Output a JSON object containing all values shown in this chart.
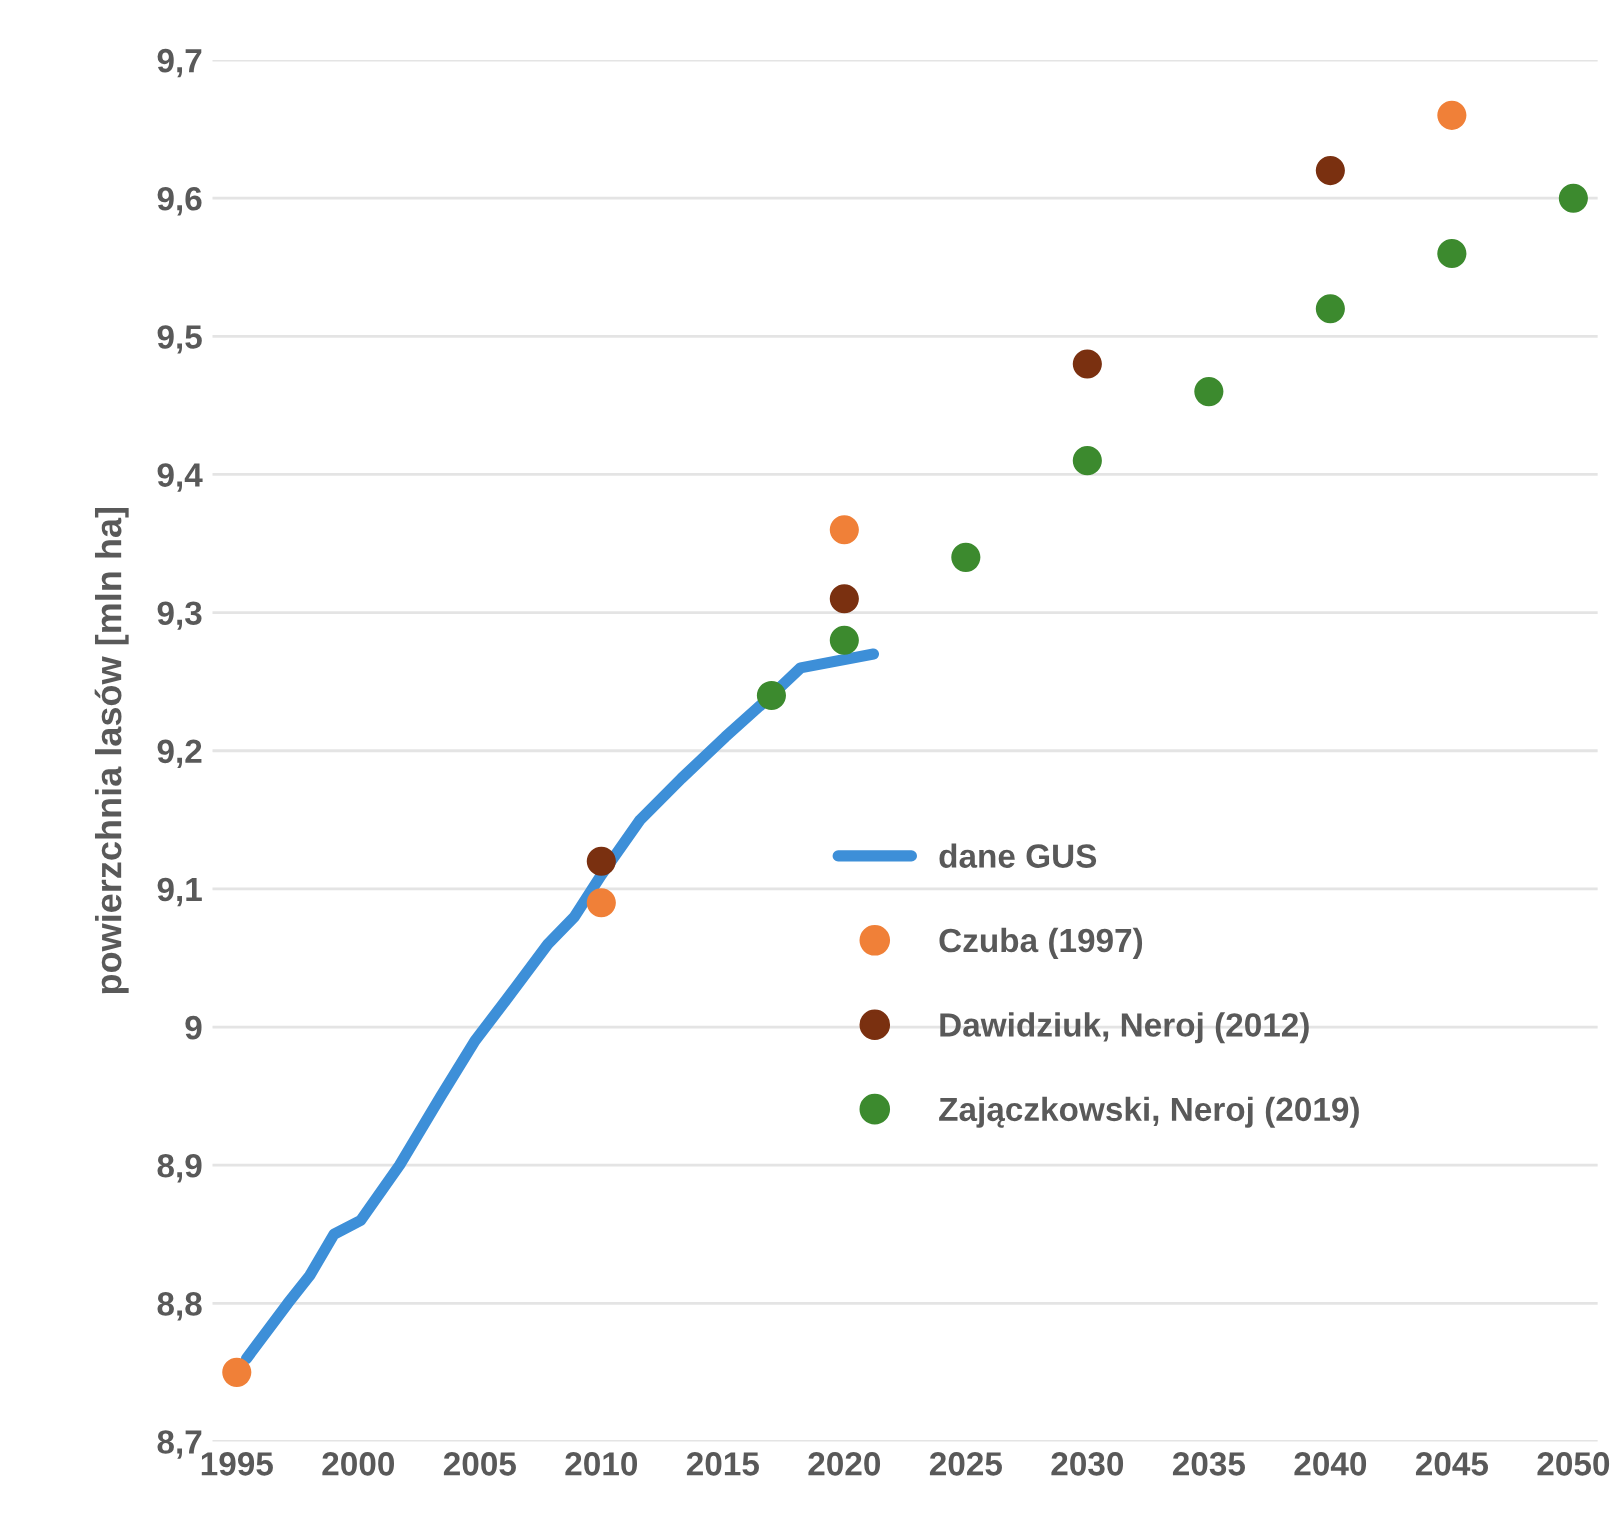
{
  "chart_data": {
    "type": "line",
    "ylabel": "powierzchnia lasów [mln ha]",
    "xlim": [
      1994,
      2051
    ],
    "xticks": [
      1995,
      2000,
      2005,
      2010,
      2015,
      2020,
      2025,
      2030,
      2035,
      2040,
      2045,
      2050
    ],
    "ylim": [
      8.7,
      9.7
    ],
    "yticks": [
      {
        "value": 8.7,
        "label": "8,7"
      },
      {
        "value": 8.8,
        "label": "8,8"
      },
      {
        "value": 8.9,
        "label": "8,9"
      },
      9,
      {
        "value": 9.1,
        "label": "9,1"
      },
      {
        "value": 9.2,
        "label": "9,2"
      },
      {
        "value": 9.3,
        "label": "9,3"
      },
      {
        "value": 9.4,
        "label": "9,4"
      },
      {
        "value": 9.5,
        "label": "9,5"
      },
      {
        "value": 9.6,
        "label": "9,6"
      },
      {
        "value": 9.7,
        "label": "9,7"
      }
    ],
    "grid": "y",
    "legend": "right",
    "series": [
      {
        "name": "dane GUS",
        "color": "#3d8fd8",
        "marker": "none",
        "line_style": "solid",
        "x": [
          1995.4,
          1997.1,
          1998.0,
          1999.0,
          2000.1,
          2001.7,
          2003.4,
          2004.8,
          2006.1,
          2007.8,
          2008.9,
          2010.0,
          2011.6,
          2013.3,
          2015.1,
          2017.0,
          2018.2,
          2021.2
        ],
        "values": [
          8.76,
          8.8,
          8.82,
          8.85,
          8.86,
          8.9,
          8.95,
          8.99,
          9.02,
          9.06,
          9.08,
          9.11,
          9.15,
          9.18,
          9.21,
          9.24,
          9.26,
          9.27
        ]
      },
      {
        "name": "Czuba (1997)",
        "type": "scatter",
        "color": "#f08038",
        "marker": "circle",
        "x": [
          1995,
          2010,
          2020,
          2045
        ],
        "values": [
          8.75,
          9.09,
          9.36,
          9.66
        ]
      },
      {
        "name": "Dawidziuk, Neroj (2012)",
        "type": "scatter",
        "color": "#7a3010",
        "marker": "circle",
        "x": [
          2010,
          2020,
          2030,
          2040
        ],
        "values": [
          9.12,
          9.31,
          9.48,
          9.62
        ]
      },
      {
        "name": "Zajączkowski, Neroj (2019)",
        "type": "scatter",
        "color": "#3c8a2e",
        "marker": "circle",
        "x": [
          2017,
          2020,
          2025,
          2030,
          2035,
          2040,
          2045,
          2050
        ],
        "values": [
          9.24,
          9.28,
          9.34,
          9.41,
          9.46,
          9.52,
          9.56,
          9.6
        ]
      }
    ]
  }
}
